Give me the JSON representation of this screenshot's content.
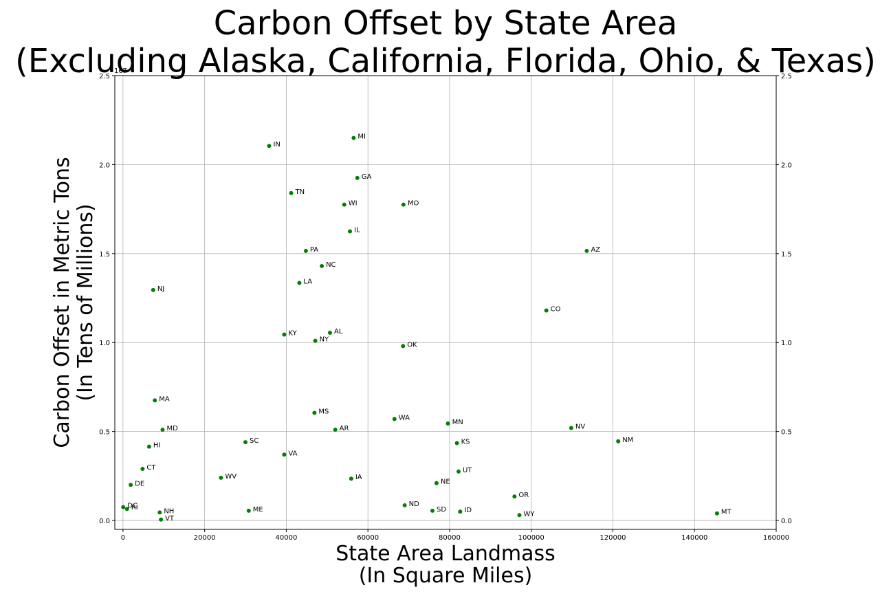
{
  "chart_data": {
    "type": "scatter",
    "title_lines": [
      "Carbon Offset by State Area",
      "(Excluding Alaska, California, Florida, Ohio, & Texas)"
    ],
    "xlabel_lines": [
      "State Area Landmass",
      "(In Square Miles)"
    ],
    "ylabel_lines": [
      "Carbon Offset in Metric Tons",
      "(In Tens of Millions)"
    ],
    "y_offset_text": "1e7",
    "xlim": [
      -2000,
      160000
    ],
    "ylim": [
      -0.05,
      2.5
    ],
    "x_ticks": [
      0,
      20000,
      40000,
      60000,
      80000,
      100000,
      120000,
      140000,
      160000
    ],
    "x_tick_labels": [
      "0",
      "20000",
      "40000",
      "60000",
      "80000",
      "100000",
      "120000",
      "140000",
      "160000"
    ],
    "y_ticks": [
      0.0,
      0.5,
      1.0,
      1.5,
      2.0,
      2.5
    ],
    "y_tick_labels": [
      "0.0",
      "0.5",
      "1.0",
      "1.5",
      "2.0",
      "2.5"
    ],
    "grid": true,
    "marker_color": "#008000",
    "points": [
      {
        "label": "MI",
        "x": 56500,
        "y": 2.15
      },
      {
        "label": "IN",
        "x": 35800,
        "y": 2.105
      },
      {
        "label": "GA",
        "x": 57400,
        "y": 1.925
      },
      {
        "label": "TN",
        "x": 41200,
        "y": 1.84
      },
      {
        "label": "WI",
        "x": 54200,
        "y": 1.775
      },
      {
        "label": "MO",
        "x": 68700,
        "y": 1.775
      },
      {
        "label": "IL",
        "x": 55600,
        "y": 1.625
      },
      {
        "label": "PA",
        "x": 44800,
        "y": 1.515
      },
      {
        "label": "AZ",
        "x": 113600,
        "y": 1.515
      },
      {
        "label": "NC",
        "x": 48700,
        "y": 1.43
      },
      {
        "label": "LA",
        "x": 43200,
        "y": 1.335
      },
      {
        "label": "NJ",
        "x": 7400,
        "y": 1.295
      },
      {
        "label": "CO",
        "x": 103700,
        "y": 1.18
      },
      {
        "label": "AL",
        "x": 50700,
        "y": 1.055
      },
      {
        "label": "KY",
        "x": 39500,
        "y": 1.045
      },
      {
        "label": "NY",
        "x": 47100,
        "y": 1.01
      },
      {
        "label": "OK",
        "x": 68600,
        "y": 0.98
      },
      {
        "label": "MA",
        "x": 7800,
        "y": 0.675
      },
      {
        "label": "MS",
        "x": 46900,
        "y": 0.605
      },
      {
        "label": "WA",
        "x": 66500,
        "y": 0.57
      },
      {
        "label": "MN",
        "x": 79600,
        "y": 0.545
      },
      {
        "label": "NV",
        "x": 109800,
        "y": 0.52
      },
      {
        "label": "MD",
        "x": 9700,
        "y": 0.51
      },
      {
        "label": "AR",
        "x": 52000,
        "y": 0.51
      },
      {
        "label": "NM",
        "x": 121300,
        "y": 0.445
      },
      {
        "label": "SC",
        "x": 30000,
        "y": 0.44
      },
      {
        "label": "KS",
        "x": 81800,
        "y": 0.435
      },
      {
        "label": "HI",
        "x": 6400,
        "y": 0.415
      },
      {
        "label": "VA",
        "x": 39500,
        "y": 0.37
      },
      {
        "label": "CT",
        "x": 4800,
        "y": 0.29
      },
      {
        "label": "UT",
        "x": 82200,
        "y": 0.275
      },
      {
        "label": "WV",
        "x": 24000,
        "y": 0.24
      },
      {
        "label": "IA",
        "x": 55900,
        "y": 0.235
      },
      {
        "label": "NE",
        "x": 76800,
        "y": 0.21
      },
      {
        "label": "DE",
        "x": 1900,
        "y": 0.2
      },
      {
        "label": "OR",
        "x": 95900,
        "y": 0.135
      },
      {
        "label": "ND",
        "x": 69000,
        "y": 0.085
      },
      {
        "label": "DC",
        "x": 60,
        "y": 0.075
      },
      {
        "label": "RI",
        "x": 1000,
        "y": 0.065
      },
      {
        "label": "ME",
        "x": 30800,
        "y": 0.055
      },
      {
        "label": "SD",
        "x": 75800,
        "y": 0.055
      },
      {
        "label": "ID",
        "x": 82600,
        "y": 0.05
      },
      {
        "label": "NH",
        "x": 9000,
        "y": 0.045
      },
      {
        "label": "MT",
        "x": 145500,
        "y": 0.04
      },
      {
        "label": "WY",
        "x": 97100,
        "y": 0.03
      },
      {
        "label": "VT",
        "x": 9300,
        "y": 0.005
      }
    ]
  }
}
